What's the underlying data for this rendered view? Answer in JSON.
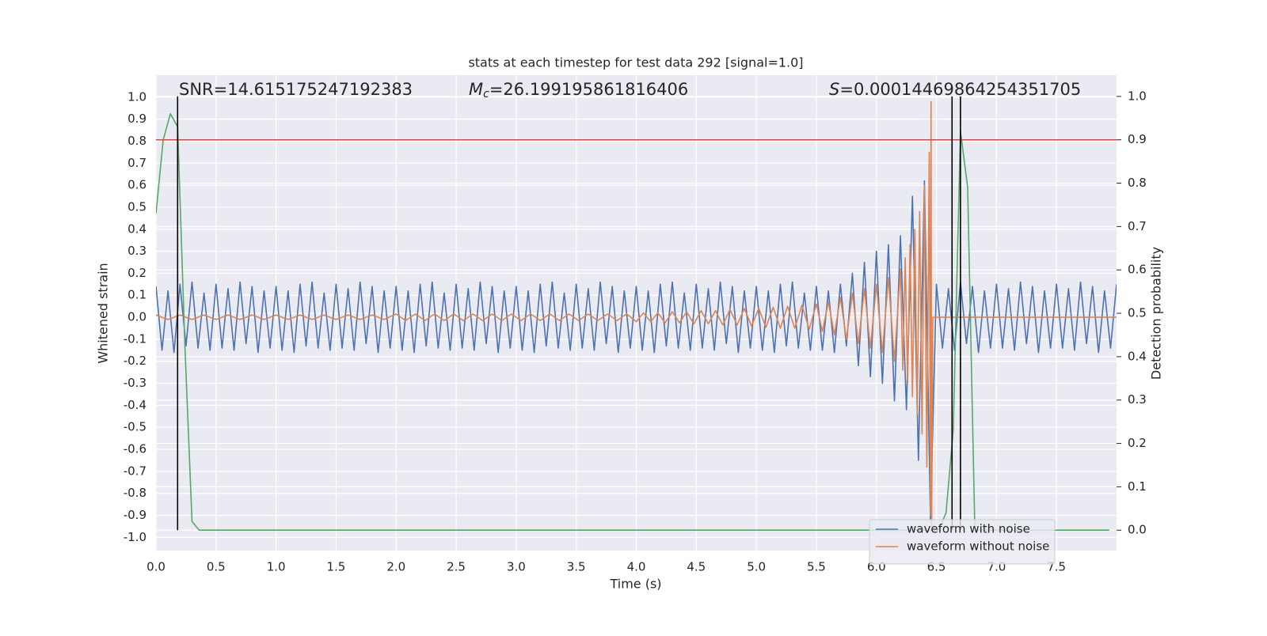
{
  "chart_data": {
    "type": "line",
    "title": "stats at each timestep for test data 292 [signal=1.0]",
    "x_label": "Time (s)",
    "y_label": "Whitened strain",
    "y2_label": "Detection probability",
    "annotations": [
      {
        "text": "SNR=14.615175247192383"
      },
      {
        "symbol": "M",
        "subscript": "c",
        "text": "=26.199195861816406"
      },
      {
        "symbol": "S",
        "text": "=0.00014469864254351705"
      }
    ],
    "xlim": [
      0,
      8
    ],
    "xticks": [
      {
        "value": 0,
        "label": "0.0"
      },
      0.5,
      {
        "value": 1,
        "label": "1.0"
      },
      1.5,
      {
        "value": 2,
        "label": "2.0"
      },
      2.5,
      {
        "value": 3,
        "label": "3.0"
      },
      3.5,
      {
        "value": 4,
        "label": "4.0"
      },
      4.5,
      {
        "value": 5,
        "label": "5.0"
      },
      5.5,
      {
        "value": 6,
        "label": "6.0"
      },
      6.5,
      {
        "value": 7,
        "label": "7.0"
      },
      7.5
    ],
    "ylim": [
      -1.06,
      1.1
    ],
    "yticks": [
      {
        "value": -1,
        "label": "-1.0"
      },
      -0.9,
      -0.8,
      -0.7,
      -0.6,
      -0.5,
      -0.4,
      -0.3,
      -0.2,
      -0.1,
      {
        "value": 0,
        "label": "0.0"
      },
      0.1,
      0.2,
      0.3,
      0.4,
      0.5,
      0.6,
      0.7,
      0.8,
      0.9,
      {
        "value": 1,
        "label": "1.0"
      }
    ],
    "y2lim": [
      -0.047,
      1.049
    ],
    "y2ticks": [
      {
        "value": 0,
        "label": "0.0"
      },
      0.1,
      0.2,
      0.3,
      0.4,
      0.5,
      0.6,
      0.7,
      0.8,
      0.9,
      {
        "value": 1,
        "label": "1.0"
      }
    ],
    "grid": true,
    "legend": "lower right",
    "series": [
      {
        "name": "waveform with noise",
        "color": "#4c72b0",
        "x": [
          0,
          0.05,
          0.1,
          0.15,
          0.2,
          0.25,
          0.3,
          0.35,
          0.4,
          0.45,
          0.5,
          0.55,
          0.6,
          0.65,
          0.7,
          0.75,
          0.8,
          0.85,
          0.9,
          0.95,
          1,
          1.05,
          1.1,
          1.15,
          1.2,
          1.25,
          1.3,
          1.35,
          1.4,
          1.45,
          1.5,
          1.55,
          1.6,
          1.65,
          1.7,
          1.75,
          1.8,
          1.85,
          1.9,
          1.95,
          2,
          2.05,
          2.1,
          2.15,
          2.2,
          2.25,
          2.3,
          2.35,
          2.4,
          2.45,
          2.5,
          2.55,
          2.6,
          2.65,
          2.7,
          2.75,
          2.8,
          2.85,
          2.9,
          2.95,
          3,
          3.05,
          3.1,
          3.15,
          3.2,
          3.25,
          3.3,
          3.35,
          3.4,
          3.45,
          3.5,
          3.55,
          3.6,
          3.65,
          3.7,
          3.75,
          3.8,
          3.85,
          3.9,
          3.95,
          4,
          4.05,
          4.1,
          4.15,
          4.2,
          4.25,
          4.3,
          4.35,
          4.4,
          4.45,
          4.5,
          4.55,
          4.6,
          4.65,
          4.7,
          4.75,
          4.8,
          4.85,
          4.9,
          4.95,
          5,
          5.05,
          5.1,
          5.15,
          5.2,
          5.25,
          5.3,
          5.35,
          5.4,
          5.45,
          5.5,
          5.55,
          5.6,
          5.65,
          5.7,
          5.75,
          5.8,
          5.85,
          5.9,
          5.95,
          6,
          6.05,
          6.1,
          6.15,
          6.2,
          6.25,
          6.3,
          6.35,
          6.4,
          6.45,
          6.5,
          6.55,
          6.6,
          6.65,
          6.7,
          6.75,
          6.8,
          6.85,
          6.9,
          6.95,
          7,
          7.05,
          7.1,
          7.15,
          7.2,
          7.25,
          7.3,
          7.35,
          7.4,
          7.45,
          7.5,
          7.55,
          7.6,
          7.65,
          7.7,
          7.75,
          7.8,
          7.85,
          7.9,
          7.95,
          8
        ],
        "values": [
          0.14,
          -0.15,
          0.12,
          -0.16,
          0.15,
          -0.13,
          0.16,
          -0.14,
          0.11,
          -0.15,
          0.15,
          -0.14,
          0.13,
          -0.15,
          0.16,
          -0.12,
          0.14,
          -0.16,
          0.12,
          -0.14,
          0.14,
          -0.15,
          0.12,
          -0.16,
          0.15,
          -0.13,
          0.16,
          -0.14,
          0.11,
          -0.15,
          0.15,
          -0.14,
          0.13,
          -0.15,
          0.16,
          -0.12,
          0.14,
          -0.16,
          0.12,
          -0.14,
          0.14,
          -0.15,
          0.12,
          -0.16,
          0.15,
          -0.13,
          0.16,
          -0.14,
          0.11,
          -0.15,
          0.15,
          -0.14,
          0.13,
          -0.15,
          0.16,
          -0.12,
          0.14,
          -0.16,
          0.12,
          -0.14,
          0.14,
          -0.15,
          0.12,
          -0.16,
          0.15,
          -0.13,
          0.16,
          -0.14,
          0.11,
          -0.15,
          0.15,
          -0.14,
          0.13,
          -0.15,
          0.16,
          -0.12,
          0.14,
          -0.16,
          0.12,
          -0.14,
          0.14,
          -0.15,
          0.12,
          -0.16,
          0.15,
          -0.13,
          0.16,
          -0.14,
          0.11,
          -0.15,
          0.15,
          -0.14,
          0.13,
          -0.15,
          0.16,
          -0.12,
          0.14,
          -0.16,
          0.12,
          -0.14,
          0.14,
          -0.15,
          0.12,
          -0.16,
          0.15,
          -0.13,
          0.16,
          -0.14,
          0.11,
          -0.15,
          0.14,
          -0.15,
          0.12,
          -0.16,
          0.15,
          -0.13,
          0.2,
          -0.22,
          0.25,
          -0.27,
          0.3,
          -0.3,
          0.33,
          -0.38,
          0.37,
          -0.42,
          0.55,
          -0.65,
          0.62,
          -0.92,
          0.15,
          -0.14,
          0.13,
          -0.15,
          0.16,
          -0.12,
          0.14,
          -0.16,
          0.12,
          -0.14,
          0.15,
          -0.14,
          0.13,
          -0.15,
          0.16,
          -0.12,
          0.14,
          -0.16,
          0.12,
          -0.14,
          0.15,
          -0.14,
          0.13,
          -0.15,
          0.16,
          -0.12,
          0.14,
          -0.16,
          0.12,
          -0.14,
          0.15
        ]
      },
      {
        "name": "waveform without noise",
        "color": "#dd8452",
        "x": [
          0,
          0.1,
          0.2,
          0.3,
          0.4,
          0.5,
          0.6,
          0.7,
          0.8,
          0.9,
          1,
          1.1,
          1.2,
          1.3,
          1.4,
          1.5,
          1.6,
          1.7,
          1.8,
          1.9,
          2,
          2.08,
          2.16,
          2.24,
          2.32,
          2.4,
          2.48,
          2.56,
          2.64,
          2.72,
          2.8,
          2.88,
          2.96,
          3.04,
          3.12,
          3.2,
          3.28,
          3.36,
          3.44,
          3.52,
          3.6,
          3.68,
          3.76,
          3.84,
          3.92,
          4,
          4.06,
          4.12,
          4.18,
          4.24,
          4.3,
          4.36,
          4.42,
          4.48,
          4.54,
          4.6,
          4.66,
          4.72,
          4.78,
          4.84,
          4.9,
          4.96,
          5.02,
          5.08,
          5.14,
          5.2,
          5.26,
          5.32,
          5.38,
          5.44,
          5.5,
          5.55,
          5.6,
          5.65,
          5.7,
          5.75,
          5.8,
          5.85,
          5.9,
          5.95,
          6,
          6.05,
          6.1,
          6.15,
          6.2,
          6.22,
          6.24,
          6.26,
          6.28,
          6.3,
          6.32,
          6.34,
          6.36,
          6.38,
          6.4,
          6.42,
          6.44,
          6.45,
          6.455,
          6.46,
          6.47,
          8
        ],
        "values": [
          0.01,
          -0.01,
          0.01,
          -0.01,
          0.01,
          -0.01,
          0.01,
          -0.01,
          0.01,
          -0.01,
          0.01,
          -0.01,
          0.01,
          -0.01,
          0.01,
          -0.01,
          0.01,
          -0.01,
          0.01,
          -0.01,
          0.015,
          -0.015,
          0.015,
          -0.015,
          0.015,
          -0.015,
          0.015,
          -0.015,
          0.015,
          -0.015,
          0.015,
          -0.015,
          0.015,
          -0.015,
          0.015,
          -0.015,
          0.015,
          -0.015,
          0.015,
          -0.015,
          0.015,
          -0.015,
          0.015,
          -0.015,
          0.015,
          -0.02,
          0.02,
          -0.02,
          0.02,
          -0.025,
          0.025,
          -0.025,
          0.025,
          -0.03,
          0.03,
          -0.03,
          0.03,
          -0.035,
          0.035,
          -0.035,
          0.04,
          -0.04,
          0.04,
          -0.045,
          0.045,
          -0.05,
          0.05,
          -0.05,
          0.055,
          -0.055,
          0.06,
          -0.065,
          0.07,
          -0.08,
          0.09,
          -0.1,
          0.11,
          -0.12,
          0.13,
          -0.14,
          0.15,
          -0.16,
          0.18,
          -0.2,
          0.22,
          -0.24,
          0.27,
          -0.3,
          0.33,
          -0.36,
          0.4,
          -0.44,
          0.48,
          -0.53,
          0.6,
          -0.68,
          0.75,
          -0.9,
          0.98,
          -0.95,
          0,
          0
        ]
      },
      {
        "color": "#55a868",
        "axis": "y2",
        "x": [
          0,
          0.06,
          0.12,
          0.18,
          0.24,
          0.3,
          0.36,
          6.52,
          6.58,
          6.64,
          6.7,
          6.76,
          6.82,
          7.94
        ],
        "values": [
          0.73,
          0.9,
          0.96,
          0.93,
          0.43,
          0.02,
          0,
          0,
          0.04,
          0.23,
          0.92,
          0.79,
          0,
          0
        ]
      }
    ],
    "hline": {
      "y": 0.9,
      "axis": "y2",
      "color": "#c44e52"
    },
    "vlines": {
      "x": [
        0.18,
        6.63,
        6.7
      ],
      "ymin": 0,
      "ymax": 1,
      "axis": "y2",
      "color": "#000000"
    }
  }
}
